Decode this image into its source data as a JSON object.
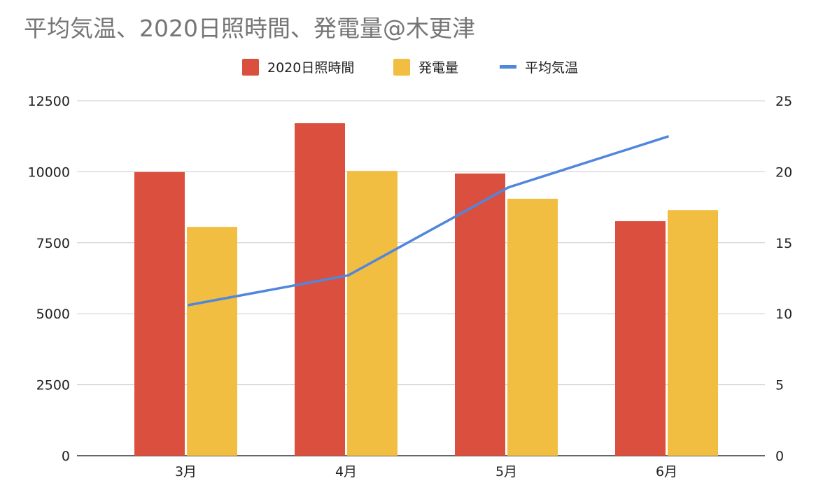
{
  "chart_data": {
    "type": "bar",
    "title": "平均気温、2020日照時間、発電量@木更津",
    "categories": [
      "3月",
      "4月",
      "5月",
      "6月"
    ],
    "series": [
      {
        "name": "2020日照時間",
        "type": "bar",
        "axis": "left",
        "color": "#db4f3f",
        "values": [
          9990,
          11710,
          9940,
          8260
        ]
      },
      {
        "name": "発電量",
        "type": "bar",
        "axis": "left",
        "color": "#f2be42",
        "values": [
          8060,
          10030,
          9050,
          8650
        ]
      },
      {
        "name": "平均気温",
        "type": "line",
        "axis": "right",
        "color": "#5087dc",
        "values": [
          10.6,
          12.7,
          18.9,
          22.5
        ]
      }
    ],
    "left_axis": {
      "ylim": [
        0,
        12500
      ],
      "ticks": [
        "0",
        "2500",
        "5000",
        "7500",
        "10000",
        "12500"
      ]
    },
    "right_axis": {
      "ylim": [
        0,
        25
      ],
      "ticks": [
        "0",
        "5",
        "10",
        "15",
        "20",
        "25"
      ]
    },
    "xlabel": "",
    "ylabel": "",
    "grid": true,
    "legend_position": "top"
  }
}
